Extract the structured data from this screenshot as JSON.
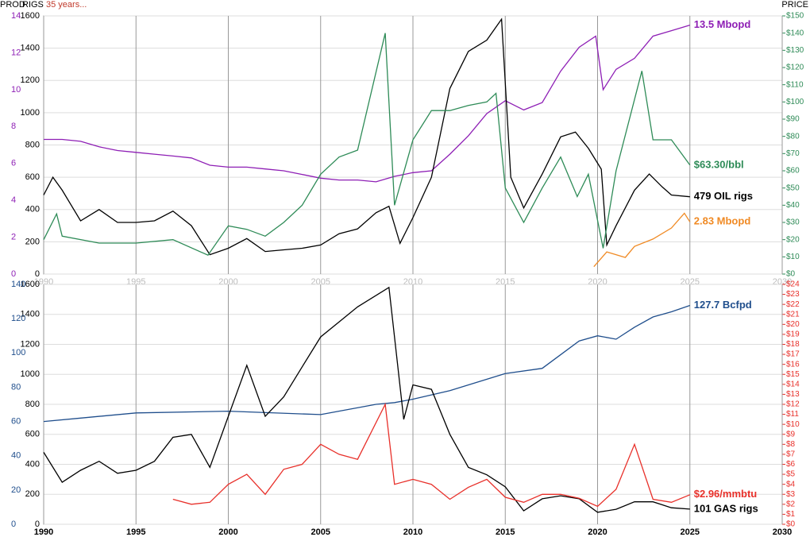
{
  "header": {
    "prod": "PROD",
    "rigs": "RIGS",
    "note": "35 years...",
    "price": "PRICE"
  },
  "chart_data": [
    {
      "type": "line",
      "xlim": [
        1990,
        2030
      ],
      "xticks": [
        1990,
        1995,
        2000,
        2005,
        2010,
        2015,
        2020,
        2025,
        2030
      ],
      "ylim": [
        0,
        1600
      ],
      "yticks": [
        0,
        200,
        400,
        600,
        800,
        1000,
        1200,
        1400,
        1600
      ],
      "y2lim": [
        0,
        150
      ],
      "y2ticks": [
        {
          "value": 0,
          "label": "$0"
        },
        {
          "value": 10,
          "label": "$10"
        },
        {
          "value": 20,
          "label": "$20"
        },
        {
          "value": 30,
          "label": "$30"
        },
        {
          "value": 40,
          "label": "$40"
        },
        {
          "value": 50,
          "label": "$50"
        },
        {
          "value": 60,
          "label": "$60"
        },
        {
          "value": 70,
          "label": "$70"
        },
        {
          "value": 80,
          "label": "$80"
        },
        {
          "value": 90,
          "label": "$90"
        },
        {
          "value": 100,
          "label": "$100"
        },
        {
          "value": 110,
          "label": "$110"
        },
        {
          "value": 120,
          "label": "$120"
        },
        {
          "value": 130,
          "label": "$130"
        },
        {
          "value": 140,
          "label": "$140"
        },
        {
          "value": 150,
          "label": "$150"
        }
      ],
      "y3lim": [
        0,
        14
      ],
      "y3ticks": [
        0,
        2,
        4,
        6,
        8,
        10,
        12,
        14
      ],
      "grid": true,
      "series": [
        {
          "name": "13.5 Mbopd",
          "color": "#8e1fb5",
          "axis": "y3",
          "x": [
            1990,
            1991,
            1992,
            1993,
            1994,
            1995,
            1996,
            1997,
            1998,
            1999,
            2000,
            2001,
            2002,
            2003,
            2004,
            2005,
            2006,
            2007,
            2008,
            2009,
            2010,
            2011,
            2012,
            2013,
            2014,
            2015,
            2016,
            2017,
            2018,
            2019,
            2019.9,
            2020.3,
            2021,
            2022,
            2023,
            2024,
            2025
          ],
          "values": [
            7.3,
            7.3,
            7.2,
            6.9,
            6.7,
            6.6,
            6.5,
            6.4,
            6.3,
            5.9,
            5.8,
            5.8,
            5.7,
            5.6,
            5.4,
            5.2,
            5.1,
            5.1,
            5.0,
            5.3,
            5.5,
            5.6,
            6.5,
            7.5,
            8.7,
            9.4,
            8.9,
            9.3,
            11.0,
            12.3,
            12.9,
            10.0,
            11.1,
            11.7,
            12.9,
            13.2,
            13.5
          ]
        },
        {
          "name": "479 OIL rigs",
          "color": "#000000",
          "x": [
            1990,
            1990.5,
            1991,
            1992,
            1993,
            1994,
            1995,
            1996,
            1997,
            1998,
            1999,
            2000,
            2001,
            2002,
            2003,
            2004,
            2005,
            2006,
            2007,
            2008,
            2008.7,
            2009.3,
            2010,
            2011,
            2012,
            2013,
            2014,
            2014.8,
            2015.3,
            2016,
            2017,
            2018,
            2018.8,
            2019.5,
            2020.2,
            2020.5,
            2021,
            2022,
            2022.8,
            2023.5,
            2024,
            2025
          ],
          "values": [
            490,
            600,
            520,
            330,
            400,
            320,
            320,
            330,
            390,
            300,
            120,
            160,
            220,
            140,
            150,
            160,
            180,
            250,
            280,
            380,
            420,
            190,
            350,
            600,
            1150,
            1380,
            1450,
            1580,
            600,
            410,
            620,
            850,
            880,
            780,
            650,
            180,
            300,
            520,
            620,
            540,
            490,
            479
          ]
        },
        {
          "name": "$63.30/bbl",
          "color": "#2e8b57",
          "axis": "y2",
          "x": [
            1990,
            1990.7,
            1991,
            1993,
            1995,
            1997,
            1998.9,
            2000,
            2001,
            2002,
            2003,
            2004,
            2005,
            2006,
            2007,
            2008.5,
            2009,
            2010,
            2011,
            2012,
            2013,
            2014,
            2014.5,
            2015,
            2016,
            2017,
            2018,
            2018.9,
            2019.5,
            2020.3,
            2021,
            2022.4,
            2023,
            2024,
            2025
          ],
          "values": [
            20,
            35,
            22,
            18,
            18,
            20,
            11,
            28,
            26,
            22,
            30,
            40,
            58,
            68,
            72,
            140,
            40,
            78,
            95,
            95,
            98,
            100,
            105,
            50,
            30,
            50,
            68,
            45,
            58,
            15,
            60,
            118,
            78,
            78,
            63.3
          ]
        },
        {
          "name": "2.83 Mbopd",
          "color": "#f08a24",
          "axis": "y3",
          "x": [
            2019.8,
            2020.5,
            2021.5,
            2022,
            2023,
            2024,
            2024.7,
            2025
          ],
          "values": [
            0.4,
            1.2,
            0.9,
            1.5,
            1.9,
            2.5,
            3.3,
            2.83
          ]
        }
      ]
    },
    {
      "type": "line",
      "xlim": [
        1990,
        2030
      ],
      "xticks": [
        1990,
        1995,
        2000,
        2005,
        2010,
        2015,
        2020,
        2025,
        2030
      ],
      "ylim": [
        0,
        1600
      ],
      "yticks": [
        0,
        200,
        400,
        600,
        800,
        1000,
        1200,
        1400,
        1600
      ],
      "y2lim": [
        0,
        24
      ],
      "y2ticks": [
        {
          "value": 0,
          "label": "$0"
        },
        {
          "value": 1,
          "label": "$1"
        },
        {
          "value": 2,
          "label": "$2"
        },
        {
          "value": 3,
          "label": "$3"
        },
        {
          "value": 4,
          "label": "$4"
        },
        {
          "value": 5,
          "label": "$5"
        },
        {
          "value": 6,
          "label": "$6"
        },
        {
          "value": 7,
          "label": "$7"
        },
        {
          "value": 8,
          "label": "$8"
        },
        {
          "value": 9,
          "label": "$9"
        },
        {
          "value": 10,
          "label": "$10"
        },
        {
          "value": 11,
          "label": "$11"
        },
        {
          "value": 12,
          "label": "$12"
        },
        {
          "value": 13,
          "label": "$13"
        },
        {
          "value": 14,
          "label": "$14"
        },
        {
          "value": 15,
          "label": "$15"
        },
        {
          "value": 16,
          "label": "$16"
        },
        {
          "value": 17,
          "label": "$17"
        },
        {
          "value": 18,
          "label": "$18"
        },
        {
          "value": 19,
          "label": "$19"
        },
        {
          "value": 20,
          "label": "$20"
        },
        {
          "value": 21,
          "label": "$21"
        },
        {
          "value": 22,
          "label": "$22"
        },
        {
          "value": 23,
          "label": "$23"
        },
        {
          "value": 24,
          "label": "$24"
        }
      ],
      "y3lim": [
        0,
        140
      ],
      "y3ticks": [
        0,
        20,
        40,
        60,
        80,
        100,
        120,
        140
      ],
      "grid": true,
      "series": [
        {
          "name": "127.7 Bcfpd",
          "color": "#1f4e8c",
          "axis": "y3",
          "x": [
            1990,
            1992,
            1995,
            2000,
            2005,
            2008,
            2009,
            2010,
            2012,
            2015,
            2017,
            2019,
            2020,
            2021,
            2022,
            2023,
            2024,
            2025
          ],
          "values": [
            60,
            62,
            65,
            66,
            64,
            70,
            71,
            73,
            78,
            88,
            91,
            107,
            110,
            108,
            115,
            121,
            124,
            127.7
          ]
        },
        {
          "name": "101 GAS rigs",
          "color": "#000000",
          "x": [
            1990,
            1991,
            1992,
            1993,
            1994,
            1995,
            1996,
            1997,
            1998,
            1999,
            2000,
            2001,
            2002,
            2003,
            2004,
            2005,
            2006,
            2007,
            2008.7,
            2009.5,
            2010,
            2011,
            2012,
            2013,
            2014,
            2015,
            2016,
            2017,
            2018,
            2019,
            2020,
            2021,
            2022,
            2023,
            2024,
            2025
          ],
          "values": [
            480,
            280,
            360,
            420,
            340,
            360,
            420,
            580,
            600,
            380,
            720,
            1060,
            720,
            850,
            1050,
            1250,
            1350,
            1450,
            1580,
            700,
            930,
            900,
            600,
            380,
            330,
            250,
            90,
            170,
            190,
            170,
            80,
            100,
            150,
            150,
            110,
            101
          ]
        },
        {
          "name": "$2.96/mmbtu",
          "color": "#e8302a",
          "axis": "y2",
          "x": [
            1997,
            1998,
            1999,
            2000,
            2001,
            2002,
            2003,
            2004,
            2005,
            2006,
            2007,
            2008.5,
            2009,
            2010,
            2011,
            2012,
            2013,
            2014,
            2015,
            2016,
            2017,
            2018,
            2019,
            2020,
            2021,
            2022,
            2023,
            2024,
            2025
          ],
          "values": [
            2.5,
            2.0,
            2.2,
            4,
            5,
            3,
            5.5,
            6,
            8,
            7,
            6.5,
            12,
            4,
            4.5,
            4,
            2.5,
            3.7,
            4.5,
            2.7,
            2.2,
            3.0,
            3.0,
            2.6,
            1.8,
            3.5,
            8,
            2.5,
            2.2,
            2.96
          ]
        }
      ]
    }
  ]
}
